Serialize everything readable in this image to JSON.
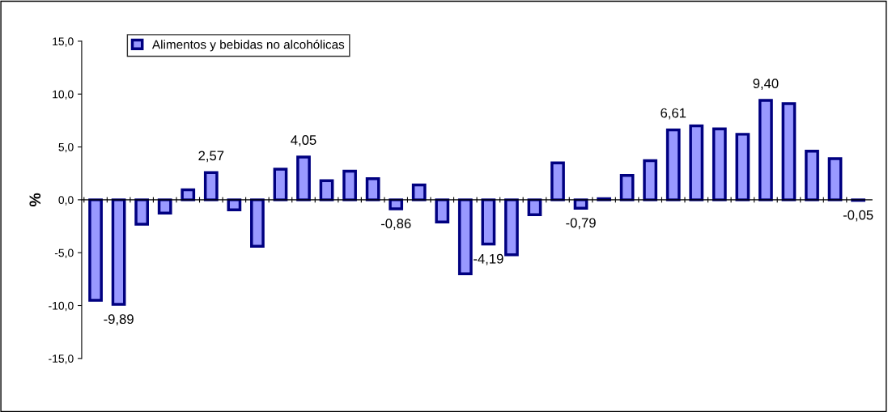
{
  "chart_data": {
    "type": "bar",
    "ylabel": "%",
    "categories": [
      null,
      null,
      null,
      null,
      null,
      null,
      null,
      null,
      null,
      null,
      null,
      null,
      null,
      null,
      null,
      null,
      null,
      null,
      null,
      null,
      null,
      null,
      null,
      null,
      null,
      null,
      null,
      null,
      null,
      null,
      null,
      null,
      null,
      null
    ],
    "series": [
      {
        "name": "Alimentos y bebidas no alcohólicas",
        "color": "#9999ff",
        "values": [
          -9.5,
          -9.89,
          -2.3,
          -1.25,
          0.95,
          2.57,
          -0.95,
          -4.4,
          2.9,
          4.05,
          1.8,
          2.7,
          2.0,
          -0.86,
          1.4,
          -2.1,
          -7.0,
          -4.19,
          -5.2,
          -1.4,
          3.5,
          -0.79,
          0.1,
          2.3,
          3.7,
          6.61,
          7.0,
          6.7,
          6.2,
          9.4,
          9.1,
          4.6,
          3.9,
          -0.05
        ],
        "value_labels": [
          null,
          "-9,89",
          null,
          null,
          null,
          "2,57",
          null,
          null,
          null,
          "4,05",
          null,
          null,
          null,
          "-0,86",
          null,
          null,
          null,
          "-4,19",
          null,
          null,
          null,
          "-0,79",
          null,
          null,
          null,
          "6,61",
          null,
          null,
          null,
          "9,40",
          null,
          null,
          null,
          "-0,05"
        ]
      }
    ],
    "ylim": [
      -15,
      15
    ],
    "yticks": [
      {
        "value": -15,
        "label": "-15,0"
      },
      {
        "value": -10,
        "label": "-10,0"
      },
      {
        "value": -5,
        "label": "-5,0"
      },
      {
        "value": 0,
        "label": "0,0"
      },
      {
        "value": 5,
        "label": "5,0"
      },
      {
        "value": 10,
        "label": "10,0"
      },
      {
        "value": 15,
        "label": "15,0"
      }
    ],
    "legend": "top left"
  }
}
